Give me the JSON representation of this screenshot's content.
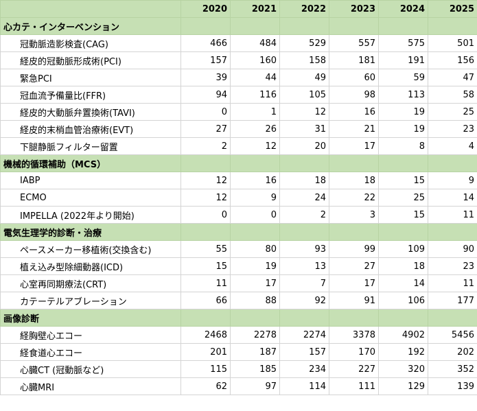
{
  "header": {
    "years": [
      "2020",
      "2021",
      "2022",
      "2023",
      "2024",
      "2025"
    ]
  },
  "sections": [
    {
      "title": "心カテ・インターベンション",
      "rows": [
        {
          "label": "冠動脈造影検査(CAG)",
          "values": [
            466,
            484,
            529,
            557,
            575,
            501
          ]
        },
        {
          "label": "経皮的冠動脈形成術(PCI)",
          "values": [
            157,
            160,
            158,
            181,
            191,
            156
          ]
        },
        {
          "label": "緊急PCI",
          "values": [
            39,
            44,
            49,
            60,
            59,
            47
          ]
        },
        {
          "label": "冠血流予備量比(FFR)",
          "values": [
            94,
            116,
            105,
            98,
            113,
            58
          ]
        },
        {
          "label": "経皮的大動脈弁置換術(TAVI)",
          "values": [
            0,
            1,
            12,
            16,
            19,
            25
          ]
        },
        {
          "label": "経皮的末梢血管治療術(EVT)",
          "values": [
            27,
            26,
            31,
            21,
            19,
            23
          ]
        },
        {
          "label": "下腿静脈フィルター留置",
          "values": [
            2,
            12,
            20,
            17,
            8,
            4
          ]
        }
      ]
    },
    {
      "title": "機械的循環補助（MCS）",
      "rows": [
        {
          "label": "IABP",
          "values": [
            12,
            16,
            18,
            18,
            15,
            9
          ]
        },
        {
          "label": "ECMO",
          "values": [
            12,
            9,
            24,
            22,
            25,
            14
          ]
        },
        {
          "label": "IMPELLA (2022年より開始)",
          "values": [
            0,
            0,
            2,
            3,
            15,
            11
          ]
        }
      ]
    },
    {
      "title": "電気生理学的診断・治療",
      "rows": [
        {
          "label": "ペースメーカー移植術(交換含む)",
          "values": [
            55,
            80,
            93,
            99,
            109,
            90
          ]
        },
        {
          "label": "植え込み型除細動器(ICD)",
          "values": [
            15,
            19,
            13,
            27,
            18,
            23
          ]
        },
        {
          "label": "心室再同期療法(CRT)",
          "values": [
            11,
            17,
            7,
            17,
            14,
            11
          ]
        },
        {
          "label": "カテーテルアブレーション",
          "values": [
            66,
            88,
            92,
            91,
            106,
            177
          ]
        }
      ]
    },
    {
      "title": "画像診断",
      "rows": [
        {
          "label": "経胸壁心エコー",
          "values": [
            2468,
            2278,
            2274,
            3378,
            4902,
            5456
          ]
        },
        {
          "label": "経食道心エコー",
          "values": [
            201,
            187,
            157,
            170,
            192,
            202
          ]
        },
        {
          "label": "心臓CT (冠動脈など)",
          "values": [
            115,
            185,
            234,
            227,
            320,
            352
          ]
        },
        {
          "label": "心臓MRI",
          "values": [
            62,
            97,
            114,
            111,
            129,
            139
          ]
        }
      ]
    }
  ]
}
